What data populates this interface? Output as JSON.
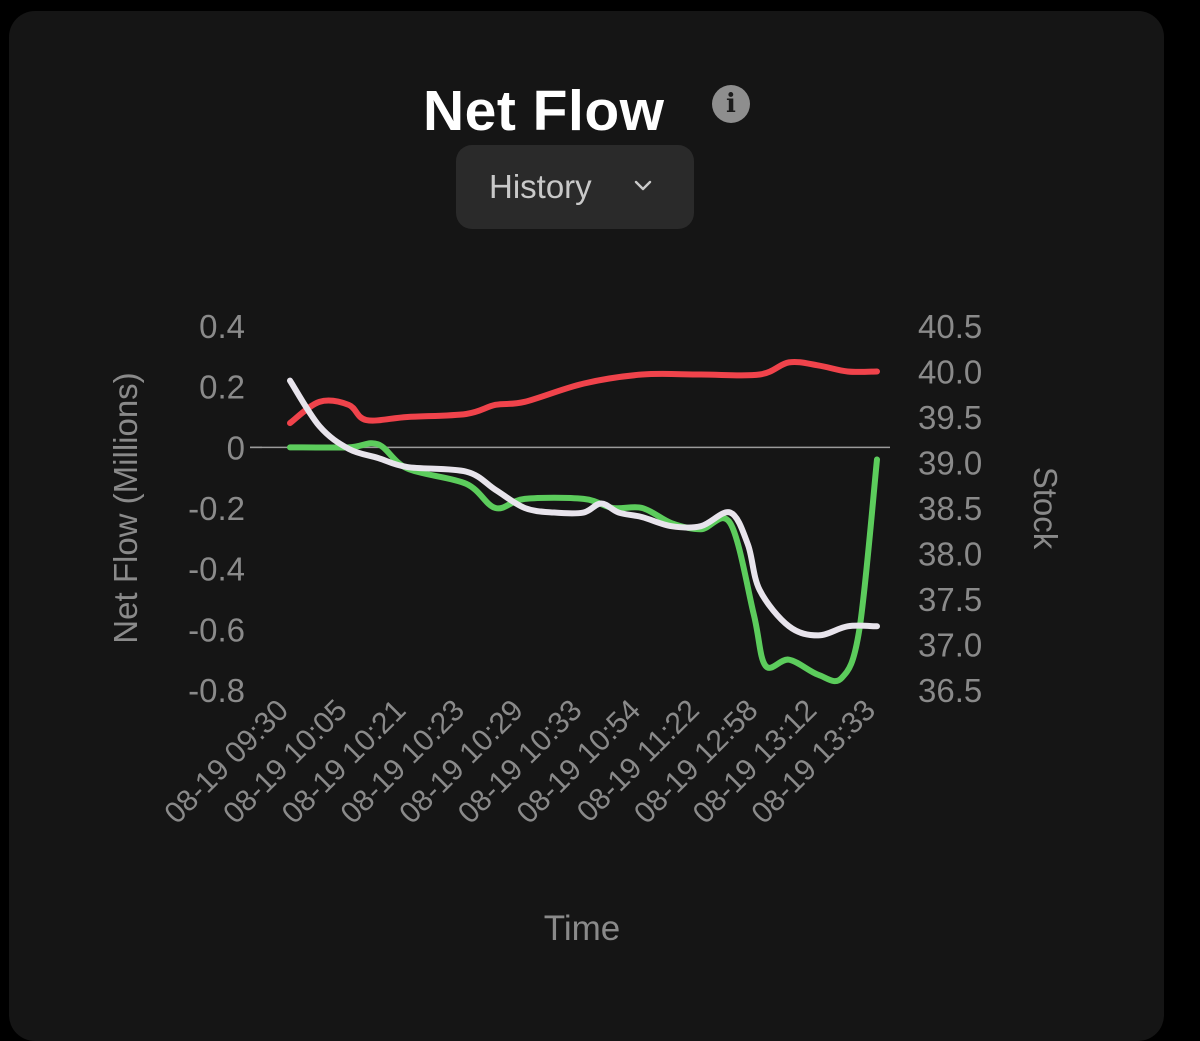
{
  "card": {
    "title": "Net Flow",
    "info_icon": "info-icon",
    "dropdown": {
      "selected": "History",
      "icon": "chevron-down-icon"
    }
  },
  "colors": {
    "background": "#000000",
    "card": "#151515",
    "stock_line": "#e8e4ec",
    "red_series": "#f0434b",
    "green_series": "#5ccc5c",
    "axis_text": "#8a8a8a",
    "zero_line": "#9a9a9a"
  },
  "chart_data": {
    "type": "line",
    "xlabel": "Time",
    "ylabel": "Net Flow (Millions)",
    "y2label": "Stock",
    "ylim": [
      -0.8,
      0.4
    ],
    "y2lim": [
      36.5,
      40.5
    ],
    "yticks": [
      "0.4",
      "0.2",
      "0",
      "-0.2",
      "-0.4",
      "-0.6",
      "-0.8"
    ],
    "y2ticks": [
      "40.5",
      "40.0",
      "39.5",
      "39.0",
      "38.5",
      "38.0",
      "37.5",
      "37.0",
      "36.5"
    ],
    "categories": [
      "08-19 09:30",
      "08-19 10:05",
      "08-19 10:21",
      "08-19 10:23",
      "08-19 10:29",
      "08-19 10:33",
      "08-19 10:54",
      "08-19 11:22",
      "08-19 12:58",
      "08-19 13:12",
      "08-19 13:33"
    ],
    "x_range": [
      0,
      10
    ],
    "series": [
      {
        "axis": "y",
        "color": "#f0434b",
        "points": [
          [
            0,
            0.08
          ],
          [
            0.5,
            0.15
          ],
          [
            1,
            0.14
          ],
          [
            1.3,
            0.09
          ],
          [
            2,
            0.1
          ],
          [
            3,
            0.11
          ],
          [
            3.5,
            0.14
          ],
          [
            4,
            0.15
          ],
          [
            5,
            0.21
          ],
          [
            6,
            0.24
          ],
          [
            7,
            0.24
          ],
          [
            8,
            0.24
          ],
          [
            8.5,
            0.28
          ],
          [
            9,
            0.27
          ],
          [
            9.5,
            0.25
          ],
          [
            10,
            0.25
          ]
        ]
      },
      {
        "axis": "y",
        "color": "#5ccc5c",
        "points": [
          [
            0,
            0.0
          ],
          [
            1,
            0.0
          ],
          [
            1.5,
            0.01
          ],
          [
            2,
            -0.07
          ],
          [
            3,
            -0.12
          ],
          [
            3.5,
            -0.2
          ],
          [
            4,
            -0.17
          ],
          [
            5,
            -0.17
          ],
          [
            5.5,
            -0.2
          ],
          [
            6,
            -0.2
          ],
          [
            6.5,
            -0.25
          ],
          [
            7,
            -0.27
          ],
          [
            7.5,
            -0.25
          ],
          [
            7.9,
            -0.55
          ],
          [
            8.1,
            -0.72
          ],
          [
            8.5,
            -0.7
          ],
          [
            9,
            -0.75
          ],
          [
            9.4,
            -0.76
          ],
          [
            9.7,
            -0.6
          ],
          [
            10,
            -0.04
          ]
        ]
      },
      {
        "axis": "y2",
        "color": "#e8e4ec",
        "points": [
          [
            0,
            39.9
          ],
          [
            0.5,
            39.4
          ],
          [
            1,
            39.15
          ],
          [
            1.5,
            39.05
          ],
          [
            2,
            38.95
          ],
          [
            3,
            38.9
          ],
          [
            3.5,
            38.7
          ],
          [
            4,
            38.5
          ],
          [
            4.5,
            38.45
          ],
          [
            5,
            38.45
          ],
          [
            5.3,
            38.55
          ],
          [
            5.6,
            38.45
          ],
          [
            6,
            38.4
          ],
          [
            6.5,
            38.3
          ],
          [
            7,
            38.3
          ],
          [
            7.5,
            38.45
          ],
          [
            7.8,
            38.1
          ],
          [
            8,
            37.6
          ],
          [
            8.5,
            37.2
          ],
          [
            9,
            37.1
          ],
          [
            9.5,
            37.2
          ],
          [
            10,
            37.2
          ]
        ]
      }
    ]
  }
}
